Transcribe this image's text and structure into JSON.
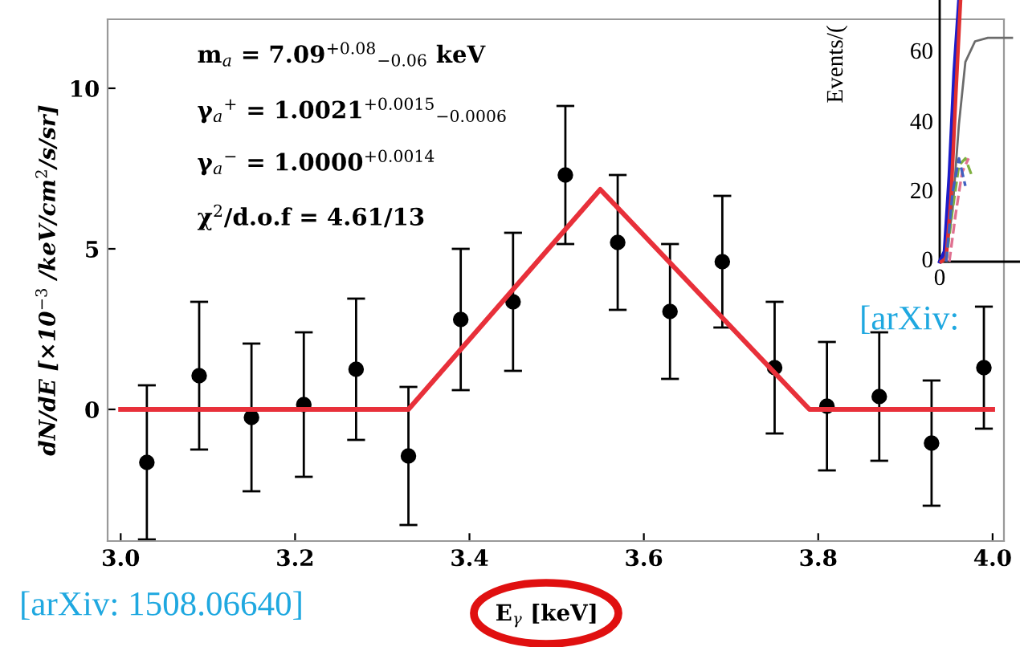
{
  "chart_data": {
    "type": "scatter",
    "xlabel": "E$_{γ}$ [keV]",
    "ylabel": "dN/dE [×10$^{−3}$ /keV/cm$^{2}$/s/sr]",
    "xlim": [
      2.985,
      4.013
    ],
    "ylim": [
      -4.1,
      12.15
    ],
    "xticks": [
      {
        "value": 3.0,
        "label": "3.0"
      },
      {
        "value": 3.2,
        "label": "3.2"
      },
      {
        "value": 3.4,
        "label": "3.4"
      },
      {
        "value": 3.6,
        "label": "3.6"
      },
      {
        "value": 3.8,
        "label": "3.8"
      },
      {
        "value": 4.0,
        "label": "4.0"
      }
    ],
    "yticks": [
      0,
      5,
      10
    ],
    "grid": false,
    "legend": false,
    "annotations": [
      "m$_{a}$ = 7.09$^{+0.08}$$_{−0.06}$ keV",
      "γ$_{a}$$^{+}$ = 1.0021$^{+0.0015}$$_{−0.0006}$",
      "γ$_{a}$$^{−}$ = 1.0000$^{+0.0014}$",
      "χ$^{2}$/d.o.f = 4.61/13",
      "[arXiv: 1508.06640]",
      "Events/(",
      "60",
      "40",
      "20",
      "0",
      "0",
      "[arXiv:"
    ],
    "series": [
      {
        "type": "scatter",
        "color": "#000000",
        "marker": "circle",
        "x": [
          3.03,
          3.09,
          3.15,
          3.21,
          3.27,
          3.33,
          3.39,
          3.45,
          3.51,
          3.57,
          3.63,
          3.69,
          3.75,
          3.81,
          3.87,
          3.93,
          3.99
        ],
        "values": [
          -1.65,
          1.05,
          -0.25,
          0.15,
          1.25,
          -1.45,
          2.8,
          3.35,
          7.3,
          5.2,
          3.05,
          4.6,
          1.3,
          0.1,
          0.4,
          -1.05,
          1.3
        ],
        "errors": [
          2.4,
          2.3,
          2.3,
          2.25,
          2.2,
          2.15,
          2.2,
          2.15,
          2.15,
          2.1,
          2.1,
          2.05,
          2.05,
          2.0,
          2.0,
          1.95,
          1.9
        ]
      },
      {
        "type": "line",
        "color": "#e8303a",
        "line_style": "solid",
        "x": [
          3.0,
          3.33,
          3.55,
          3.79,
          4.0
        ],
        "values": [
          0,
          0,
          6.85,
          0,
          0
        ]
      }
    ]
  }
}
